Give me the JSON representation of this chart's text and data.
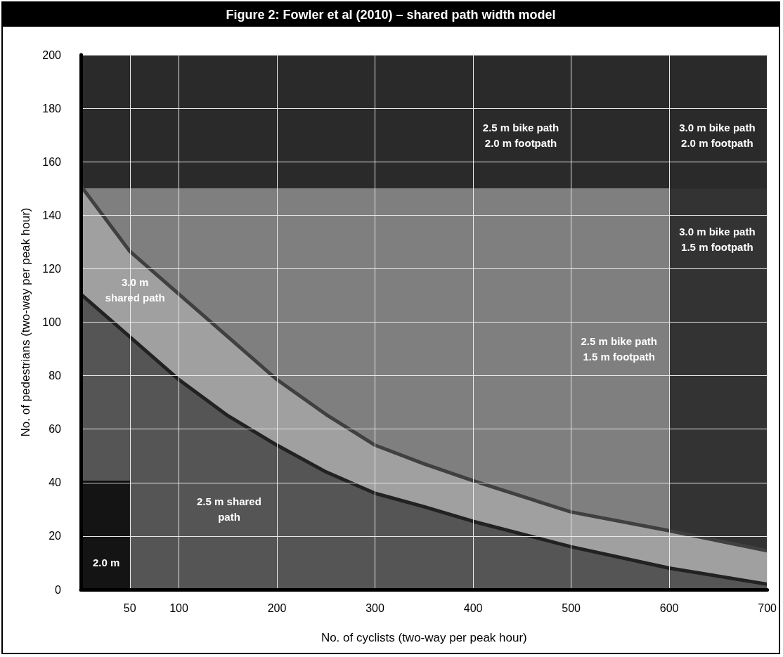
{
  "chart_data": {
    "type": "area",
    "title": "Figure 2: Fowler et al (2010) – shared path width model",
    "xlabel": "No. of cyclists (two-way per peak hour)",
    "ylabel": "No. of pedestrians (two-way per peak hour)",
    "xlim": [
      0,
      700
    ],
    "xticks": [
      50,
      100,
      200,
      300,
      400,
      500,
      600,
      700
    ],
    "ylim": [
      0,
      200
    ],
    "yticks": [
      0,
      20,
      40,
      60,
      80,
      100,
      120,
      140,
      160,
      180,
      200
    ],
    "grid": true,
    "series": [
      {
        "color": "#a0a0a0",
        "x": [
          0,
          50,
          100,
          150,
          200,
          250,
          300,
          350,
          400,
          500,
          600,
          700
        ],
        "values": [
          151,
          126.5,
          110.5,
          94.5,
          78.5,
          65.5,
          54,
          47,
          40.7,
          29,
          22,
          14.5
        ]
      },
      {
        "color": "#555555",
        "x": [
          0,
          50,
          100,
          150,
          200,
          250,
          300,
          350,
          400,
          500,
          600,
          700
        ],
        "values": [
          110.5,
          94.5,
          78.5,
          65,
          54,
          44,
          36,
          31,
          25.5,
          16,
          8,
          2
        ]
      },
      {
        "color": "#141414",
        "x": [
          0,
          50
        ],
        "values": [
          40,
          40
        ]
      }
    ],
    "bands": [
      {
        "axis": "y",
        "from": 0,
        "to": 150,
        "color": "#7f7f7f"
      },
      {
        "axis": "x",
        "from": 600,
        "to": 700,
        "color": "#333333"
      },
      {
        "axis": "y",
        "from": 150,
        "to": 200,
        "color": "#2a2a2a"
      }
    ],
    "annotations": [
      "3.0 m\nshared path",
      "2.5 m shared\npath",
      "2.0 m",
      "2.5 m bike path\n2.0 m footpath",
      "3.0 m bike path\n2.0 m footpath",
      "3.0 m bike path\n1.5 m footpath",
      "2.5 m bike path\n1.5 m footpath"
    ]
  }
}
